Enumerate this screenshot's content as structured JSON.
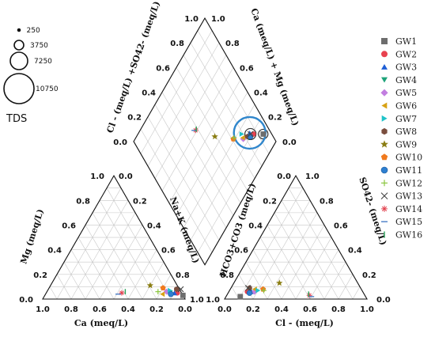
{
  "chart_data": {
    "type": "scatter",
    "subtype": "piper-diagram",
    "axes": {
      "cation_ca": "Ca (meq/L)",
      "cation_mg": "Mg (meq/L)",
      "cation_nak": "Na+K (meq/L)",
      "anion_cl": "Cl - (meq/L)",
      "anion_so4": "SO42- (meq/L)",
      "anion_hco3": "HCO3+CO3 (meq/L)",
      "diamond_cl_so4": "Cl - (meq/L) +SO42- (meq/L)",
      "diamond_ca_mg": "Ca (meq/L) + Mg (meq/L)"
    },
    "ticks": [
      "0.0",
      "0.2",
      "0.4",
      "0.6",
      "0.8",
      "1.0"
    ],
    "tds_legend": {
      "title": "TDS",
      "sizes": [
        "250",
        "3750",
        "7250",
        "10750"
      ]
    },
    "series": [
      {
        "name": "GW1",
        "color": "#6d6d6d",
        "marker": "square",
        "cation": {
          "ca": 0.03,
          "mg": 0.03
        },
        "anion": {
          "cl": 0.1,
          "so4": 0.02
        }
      },
      {
        "name": "GW2",
        "color": "#e8424f",
        "marker": "circle",
        "cation": {
          "ca": 0.08,
          "mg": 0.05
        },
        "anion": {
          "cl": 0.13,
          "so4": 0.06
        }
      },
      {
        "name": "GW3",
        "color": "#1f5fd6",
        "marker": "triangle-up",
        "cation": {
          "ca": 0.1,
          "mg": 0.05
        },
        "anion": {
          "cl": 0.16,
          "so4": 0.06
        }
      },
      {
        "name": "GW4",
        "color": "#1ea37a",
        "marker": "triangle-down",
        "cation": {
          "ca": 0.13,
          "mg": 0.05
        },
        "anion": {
          "cl": 0.14,
          "so4": 0.07
        }
      },
      {
        "name": "GW5",
        "color": "#c27ee0",
        "marker": "diamond",
        "cation": {
          "ca": 0.16,
          "mg": 0.06
        },
        "anion": {
          "cl": 0.18,
          "so4": 0.06
        }
      },
      {
        "name": "GW6",
        "color": "#d8a215",
        "marker": "triangle-left",
        "cation": {
          "ca": 0.18,
          "mg": 0.04
        },
        "anion": {
          "cl": 0.17,
          "so4": 0.08
        }
      },
      {
        "name": "GW7",
        "color": "#1fc3c9",
        "marker": "triangle-right",
        "cation": {
          "ca": 0.14,
          "mg": 0.07
        },
        "anion": {
          "cl": 0.2,
          "so4": 0.07
        }
      },
      {
        "name": "GW8",
        "color": "#7a4e3e",
        "marker": "hexagon",
        "cation": {
          "ca": 0.1,
          "mg": 0.08
        },
        "anion": {
          "cl": 0.13,
          "so4": 0.09
        }
      },
      {
        "name": "GW9",
        "color": "#8a7d12",
        "marker": "star",
        "cation": {
          "ca": 0.3,
          "mg": 0.11
        },
        "anion": {
          "cl": 0.32,
          "so4": 0.13
        }
      },
      {
        "name": "GW10",
        "color": "#f07a1e",
        "marker": "pentagon",
        "cation": {
          "ca": 0.2,
          "mg": 0.09
        },
        "anion": {
          "cl": 0.23,
          "so4": 0.08
        }
      },
      {
        "name": "GW11",
        "color": "#2e7fd0",
        "marker": "sphere",
        "cation": {
          "ca": 0.12,
          "mg": 0.04
        },
        "anion": {
          "cl": 0.15,
          "so4": 0.05
        }
      },
      {
        "name": "GW12",
        "color": "#8ac63f",
        "marker": "plus",
        "cation": {
          "ca": 0.22,
          "mg": 0.06
        },
        "anion": {
          "cl": 0.24,
          "so4": 0.07
        }
      },
      {
        "name": "GW13",
        "color": "#444444",
        "marker": "x",
        "cation": {
          "ca": 0.07,
          "mg": 0.08
        },
        "anion": {
          "cl": 0.12,
          "so4": 0.09
        }
      },
      {
        "name": "GW14",
        "color": "#e2424f",
        "marker": "asterisk",
        "cation": {
          "ca": 0.47,
          "mg": 0.05
        },
        "anion": {
          "cl": 0.58,
          "so4": 0.03
        }
      },
      {
        "name": "GW15",
        "color": "#4a7ec7",
        "marker": "hline",
        "cation": {
          "ca": 0.49,
          "mg": 0.04
        },
        "anion": {
          "cl": 0.6,
          "so4": 0.02
        }
      },
      {
        "name": "GW16",
        "color": "#2aa35a",
        "marker": "vline",
        "cation": {
          "ca": 0.45,
          "mg": 0.06
        },
        "anion": {
          "cl": 0.57,
          "so4": 0.04
        }
      }
    ]
  }
}
